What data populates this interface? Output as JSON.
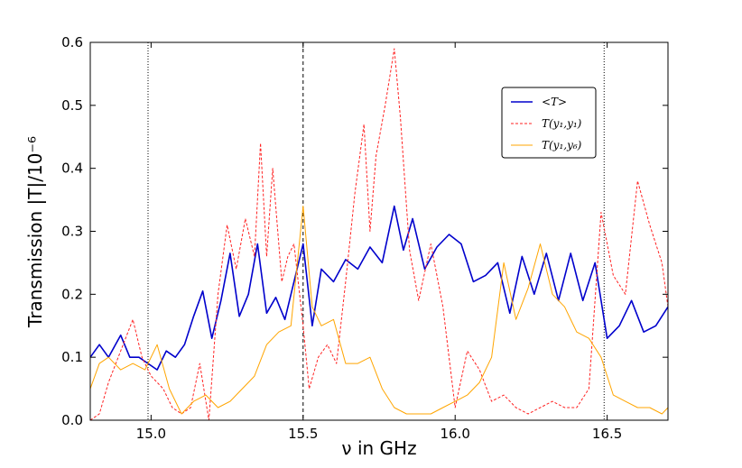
{
  "chart_data": {
    "type": "line",
    "xlabel": "ν in GHz",
    "ylabel": "Transmission |T|/10⁻⁶",
    "xlim": [
      14.8,
      16.7
    ],
    "ylim": [
      0.0,
      0.6
    ],
    "xticks": [
      15.0,
      15.5,
      16.0,
      16.5
    ],
    "xtick_labels": [
      "15.0",
      "15.5",
      "16.0",
      "16.5"
    ],
    "yticks": [
      0.0,
      0.1,
      0.2,
      0.3,
      0.4,
      0.5,
      0.6
    ],
    "ytick_labels": [
      "0.0",
      "0.1",
      "0.2",
      "0.3",
      "0.4",
      "0.5",
      "0.6"
    ],
    "grid": false,
    "legend_position": "upper-right",
    "vlines": [
      {
        "x": 14.99,
        "style": "dotted"
      },
      {
        "x": 15.5,
        "style": "dashed"
      },
      {
        "x": 16.49,
        "style": "dotted"
      }
    ],
    "series": [
      {
        "name": "<T>",
        "color": "#0000cc",
        "style": "solid",
        "x": [
          14.8,
          14.83,
          14.86,
          14.9,
          14.93,
          14.96,
          14.99,
          15.02,
          15.05,
          15.08,
          15.11,
          15.14,
          15.17,
          15.2,
          15.23,
          15.26,
          15.29,
          15.32,
          15.35,
          15.38,
          15.41,
          15.44,
          15.47,
          15.5,
          15.53,
          15.56,
          15.6,
          15.64,
          15.68,
          15.72,
          15.76,
          15.8,
          15.83,
          15.86,
          15.9,
          15.94,
          15.98,
          16.02,
          16.06,
          16.1,
          16.14,
          16.18,
          16.22,
          16.26,
          16.3,
          16.34,
          16.38,
          16.42,
          16.46,
          16.5,
          16.54,
          16.58,
          16.62,
          16.66,
          16.7
        ],
        "y": [
          0.1,
          0.12,
          0.1,
          0.135,
          0.1,
          0.1,
          0.09,
          0.08,
          0.11,
          0.1,
          0.12,
          0.165,
          0.205,
          0.13,
          0.19,
          0.265,
          0.165,
          0.2,
          0.28,
          0.17,
          0.195,
          0.16,
          0.22,
          0.28,
          0.15,
          0.24,
          0.22,
          0.255,
          0.24,
          0.275,
          0.25,
          0.34,
          0.27,
          0.32,
          0.24,
          0.275,
          0.295,
          0.28,
          0.22,
          0.23,
          0.25,
          0.17,
          0.26,
          0.2,
          0.265,
          0.19,
          0.265,
          0.19,
          0.25,
          0.13,
          0.15,
          0.19,
          0.14,
          0.15,
          0.18
        ]
      },
      {
        "name": "T(y₁,y₁)",
        "color": "#ff2222",
        "style": "dashed",
        "x": [
          14.8,
          14.83,
          14.86,
          14.9,
          14.94,
          14.97,
          15.0,
          15.04,
          15.07,
          15.1,
          15.13,
          15.16,
          15.19,
          15.22,
          15.25,
          15.28,
          15.31,
          15.34,
          15.36,
          15.38,
          15.4,
          15.43,
          15.45,
          15.47,
          15.5,
          15.52,
          15.55,
          15.58,
          15.61,
          15.64,
          15.67,
          15.7,
          15.72,
          15.74,
          15.77,
          15.8,
          15.82,
          15.85,
          15.88,
          15.92,
          15.96,
          16.0,
          16.04,
          16.08,
          16.12,
          16.16,
          16.2,
          16.24,
          16.28,
          16.32,
          16.36,
          16.4,
          16.44,
          16.48,
          16.52,
          16.56,
          16.6,
          16.64,
          16.68,
          16.7
        ],
        "y": [
          0.0,
          0.01,
          0.06,
          0.11,
          0.16,
          0.1,
          0.07,
          0.05,
          0.02,
          0.01,
          0.02,
          0.09,
          0.0,
          0.2,
          0.31,
          0.24,
          0.32,
          0.26,
          0.44,
          0.26,
          0.4,
          0.22,
          0.26,
          0.28,
          0.15,
          0.05,
          0.1,
          0.12,
          0.09,
          0.22,
          0.36,
          0.47,
          0.3,
          0.42,
          0.5,
          0.59,
          0.48,
          0.27,
          0.19,
          0.28,
          0.18,
          0.02,
          0.11,
          0.08,
          0.03,
          0.04,
          0.02,
          0.01,
          0.02,
          0.03,
          0.02,
          0.02,
          0.05,
          0.33,
          0.23,
          0.2,
          0.38,
          0.31,
          0.25,
          0.18
        ]
      },
      {
        "name": "T(y₁,y₆)",
        "color": "#ffa500",
        "style": "solid",
        "x": [
          14.8,
          14.83,
          14.86,
          14.9,
          14.94,
          14.98,
          15.02,
          15.06,
          15.1,
          15.14,
          15.18,
          15.22,
          15.26,
          15.3,
          15.34,
          15.38,
          15.42,
          15.46,
          15.5,
          15.53,
          15.56,
          15.6,
          15.64,
          15.68,
          15.72,
          15.76,
          15.8,
          15.84,
          15.88,
          15.92,
          15.96,
          16.0,
          16.04,
          16.08,
          16.12,
          16.16,
          16.2,
          16.24,
          16.28,
          16.32,
          16.36,
          16.4,
          16.44,
          16.48,
          16.52,
          16.56,
          16.6,
          16.64,
          16.68,
          16.7
        ],
        "y": [
          0.05,
          0.09,
          0.1,
          0.08,
          0.09,
          0.08,
          0.12,
          0.05,
          0.01,
          0.03,
          0.04,
          0.02,
          0.03,
          0.05,
          0.07,
          0.12,
          0.14,
          0.15,
          0.34,
          0.18,
          0.15,
          0.16,
          0.09,
          0.09,
          0.1,
          0.05,
          0.02,
          0.01,
          0.01,
          0.01,
          0.02,
          0.03,
          0.04,
          0.06,
          0.1,
          0.25,
          0.16,
          0.21,
          0.28,
          0.2,
          0.18,
          0.14,
          0.13,
          0.1,
          0.04,
          0.03,
          0.02,
          0.02,
          0.01,
          0.02
        ]
      }
    ]
  }
}
